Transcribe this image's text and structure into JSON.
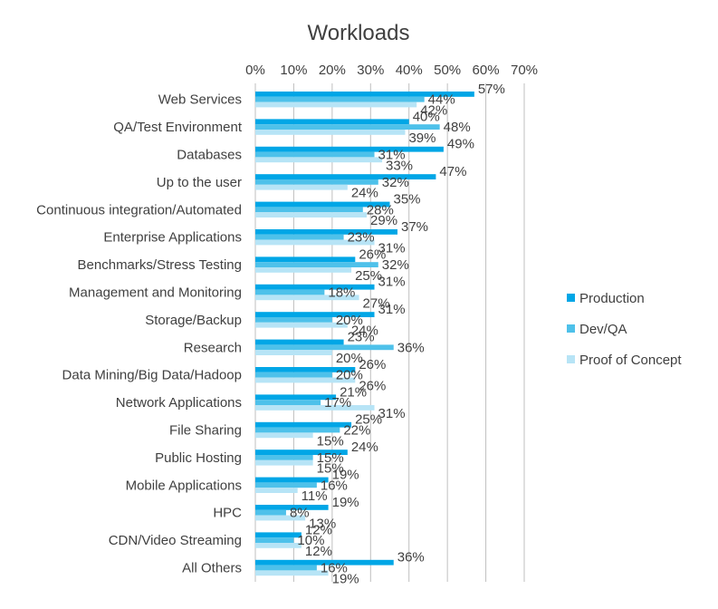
{
  "chart_data": {
    "type": "bar",
    "orientation": "horizontal",
    "title": "Workloads",
    "xlim": [
      0,
      70
    ],
    "xticks": [
      "0%",
      "10%",
      "20%",
      "30%",
      "40%",
      "50%",
      "60%",
      "70%"
    ],
    "xtick_axis_position": "top",
    "grid": true,
    "legend_position": "right",
    "categories": [
      "Web Services",
      "QA/Test Environment",
      "Databases",
      "Up to the user",
      "Continuous integration/Automated",
      "Enterprise Applications",
      "Benchmarks/Stress Testing",
      "Management and Monitoring",
      "Storage/Backup",
      "Research",
      "Data Mining/Big Data/Hadoop",
      "Network Applications",
      "File Sharing",
      "Public Hosting",
      "Mobile Applications",
      "HPC",
      "CDN/Video Streaming",
      "All Others"
    ],
    "series": [
      {
        "name": "Production",
        "color": "#00a6e6",
        "values": [
          57,
          40,
          49,
          47,
          35,
          37,
          26,
          31,
          31,
          23,
          26,
          21,
          25,
          24,
          19,
          19,
          12,
          36
        ],
        "labels": [
          "57%",
          "40%",
          "49%",
          "47%",
          "35%",
          "37%",
          "26%",
          "31%",
          "31%",
          "23%",
          "26%",
          "21%",
          "25%",
          "24%",
          "19%",
          "19%",
          "12%",
          "36%"
        ]
      },
      {
        "name": "Dev/QA",
        "color": "#4ec1ea",
        "values": [
          44,
          48,
          31,
          32,
          28,
          23,
          32,
          18,
          20,
          36,
          20,
          17,
          22,
          15,
          16,
          8,
          10,
          16
        ],
        "labels": [
          "44%",
          "48%",
          "31%",
          "32%",
          "28%",
          "23%",
          "32%",
          "18%",
          "20%",
          "36%",
          "20%",
          "17%",
          "22%",
          "15%",
          "16%",
          "8%",
          "10%",
          "16%"
        ]
      },
      {
        "name": "Proof of Concept",
        "color": "#b7e4f6",
        "values": [
          42,
          39,
          33,
          24,
          29,
          31,
          25,
          27,
          24,
          20,
          26,
          31,
          15,
          15,
          11,
          13,
          12,
          19
        ],
        "labels": [
          "42%",
          "39%",
          "33%",
          "24%",
          "29%",
          "31%",
          "25%",
          "27%",
          "24%",
          "20%",
          "26%",
          "31%",
          "15%",
          "15%",
          "11%",
          "13%",
          "12%",
          "19%"
        ]
      }
    ]
  }
}
